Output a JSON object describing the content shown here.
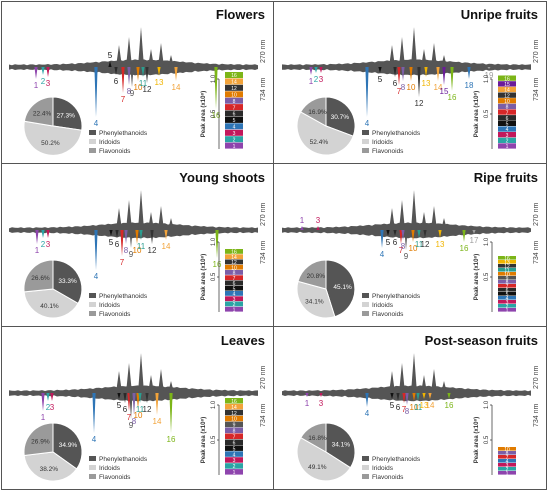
{
  "legend_labels": [
    "Phenylethanoids",
    "Iridoids",
    "Flavonoids"
  ],
  "wavelength_top": "270 nm",
  "wavelength_bottom": "734 nm",
  "bar_ylabel": "Peak area (x10⁸)",
  "bar_ticks": [
    "0.5",
    "1.0"
  ],
  "colors": {
    "chromatogram": "#555555",
    "phenylethanoids": "#555555",
    "iridoids": "#d3d3d3",
    "flavonoids": "#9a9a9a",
    "peaks": {
      "1": "#8e44ad",
      "2": "#2aa5a5",
      "3": "#c2185b",
      "4": "#2e75b6",
      "5": "#111111",
      "6": "#2a2a2a",
      "7": "#d62728",
      "8": "#7b5ea7",
      "9": "#555555",
      "10": "#e07b00",
      "11": "#2a9d8f",
      "12": "#333333",
      "13": "#f0b400",
      "14": "#f2a33a",
      "15": "#6a1b9a",
      "16": "#7cb518",
      "17": "#9e9e9e",
      "18": "#2e75b6",
      "19": "#9e9e9e"
    }
  },
  "chart_data": [
    {
      "panel": "Flowers",
      "type": "pie",
      "title": "Flowers",
      "pie": {
        "labels": [
          "Phenylethanoids",
          "Iridoids",
          "Flavonoids"
        ],
        "values": [
          27.3,
          50.2,
          22.4
        ],
        "value_labels": [
          "27.3%",
          "50.2%",
          "22.4%"
        ]
      },
      "bar": {
        "segments": [
          "1",
          "2",
          "3",
          "4",
          "5",
          "6",
          "7",
          "8",
          "10",
          "12",
          "14",
          "16"
        ],
        "total": 1.1
      },
      "peak_labels": [
        {
          "label": "1",
          "x": 35,
          "dir": "down",
          "h": 12
        },
        {
          "label": "2",
          "x": 42,
          "dir": "down",
          "h": 8
        },
        {
          "label": "3",
          "x": 47,
          "dir": "down",
          "h": 10
        },
        {
          "label": "4",
          "x": 95,
          "dir": "down",
          "h": 50
        },
        {
          "label": "5",
          "x": 109,
          "dir": "up",
          "h": 6
        },
        {
          "label": "6",
          "x": 115,
          "dir": "down",
          "h": 8
        },
        {
          "label": "7",
          "x": 122,
          "dir": "down",
          "h": 26
        },
        {
          "label": "8",
          "x": 128,
          "dir": "down",
          "h": 18
        },
        {
          "label": "9",
          "x": 131,
          "dir": "down",
          "h": 20
        },
        {
          "label": "10",
          "x": 137,
          "dir": "down",
          "h": 14
        },
        {
          "label": "11",
          "x": 142,
          "dir": "down",
          "h": 10
        },
        {
          "label": "12",
          "x": 146,
          "dir": "down",
          "h": 16
        },
        {
          "label": "13",
          "x": 158,
          "dir": "down",
          "h": 9
        },
        {
          "label": "14",
          "x": 175,
          "dir": "down",
          "h": 14
        },
        {
          "label": "16",
          "x": 215,
          "dir": "down",
          "h": 42
        }
      ]
    },
    {
      "panel": "Unripe fruits",
      "type": "pie",
      "title": "Unripe fruits",
      "pie": {
        "labels": [
          "Phenylethanoids",
          "Iridoids",
          "Flavonoids"
        ],
        "values": [
          30.7,
          52.4,
          16.9
        ],
        "value_labels": [
          "30.7%",
          "52.4%",
          "16.9%"
        ]
      },
      "bar": {
        "segments": [
          "1",
          "2",
          "3",
          "4",
          "5",
          "6",
          "7",
          "8",
          "10",
          "12",
          "14",
          "15",
          "16"
        ],
        "total": 1.05
      },
      "peak_labels": [
        {
          "label": "1",
          "x": 37,
          "dir": "down",
          "h": 8
        },
        {
          "label": "2",
          "x": 42,
          "dir": "down",
          "h": 6
        },
        {
          "label": "3",
          "x": 47,
          "dir": "down",
          "h": 6
        },
        {
          "label": "4",
          "x": 93,
          "dir": "down",
          "h": 50
        },
        {
          "label": "5",
          "x": 106,
          "dir": "down",
          "h": 6
        },
        {
          "label": "6",
          "x": 121,
          "dir": "down",
          "h": 10
        },
        {
          "label": "7",
          "x": 125,
          "dir": "down",
          "h": 18
        },
        {
          "label": "8",
          "x": 129,
          "dir": "down",
          "h": 14
        },
        {
          "label": "10",
          "x": 137,
          "dir": "down",
          "h": 14
        },
        {
          "label": "12",
          "x": 145,
          "dir": "down",
          "h": 30
        },
        {
          "label": "13",
          "x": 152,
          "dir": "down",
          "h": 10
        },
        {
          "label": "14",
          "x": 164,
          "dir": "down",
          "h": 14
        },
        {
          "label": "15",
          "x": 170,
          "dir": "down",
          "h": 18
        },
        {
          "label": "16",
          "x": 178,
          "dir": "down",
          "h": 24
        },
        {
          "label": "18",
          "x": 195,
          "dir": "down",
          "h": 12
        },
        {
          "label": "19",
          "x": 215,
          "dir": "down",
          "h": 2
        }
      ]
    },
    {
      "panel": "Young shoots",
      "type": "pie",
      "title": "Young shoots",
      "pie": {
        "labels": [
          "Phenylethanoids",
          "Iridoids",
          "Flavonoids"
        ],
        "values": [
          33.3,
          40.1,
          26.6
        ],
        "value_labels": [
          "33.3%",
          "40.1%",
          "26.6%"
        ]
      },
      "bar": {
        "segments": [
          "1",
          "2",
          "3",
          "4",
          "5",
          "6",
          "7",
          "8",
          "10",
          "12",
          "14",
          "16"
        ],
        "total": 0.9
      },
      "peak_labels": [
        {
          "label": "1",
          "x": 36,
          "dir": "down",
          "h": 14
        },
        {
          "label": "2",
          "x": 42,
          "dir": "down",
          "h": 8
        },
        {
          "label": "3",
          "x": 47,
          "dir": "down",
          "h": 8
        },
        {
          "label": "4",
          "x": 95,
          "dir": "down",
          "h": 40
        },
        {
          "label": "5",
          "x": 110,
          "dir": "down",
          "h": 6
        },
        {
          "label": "6",
          "x": 116,
          "dir": "down",
          "h": 8
        },
        {
          "label": "7",
          "x": 121,
          "dir": "down",
          "h": 26
        },
        {
          "label": "8",
          "x": 125,
          "dir": "down",
          "h": 14
        },
        {
          "label": "9",
          "x": 130,
          "dir": "down",
          "h": 18
        },
        {
          "label": "10",
          "x": 136,
          "dir": "down",
          "h": 14
        },
        {
          "label": "11",
          "x": 140,
          "dir": "down",
          "h": 10
        },
        {
          "label": "12",
          "x": 151,
          "dir": "down",
          "h": 14
        },
        {
          "label": "14",
          "x": 165,
          "dir": "down",
          "h": 10
        },
        {
          "label": "16",
          "x": 216,
          "dir": "down",
          "h": 28
        }
      ]
    },
    {
      "panel": "Ripe fruits",
      "type": "pie",
      "title": "Ripe fruits",
      "pie": {
        "labels": [
          "Phenylethanoids",
          "Iridoids",
          "Flavonoids"
        ],
        "values": [
          45.1,
          34.1,
          20.8
        ],
        "value_labels": [
          "45.1%",
          "34.1%",
          "20.8%"
        ]
      },
      "bar": {
        "segments": [
          "1",
          "2",
          "3",
          "4",
          "5",
          "6",
          "7",
          "8",
          "9",
          "10",
          "11",
          "12",
          "13",
          "16"
        ],
        "total": 0.8
      },
      "peak_labels": [
        {
          "label": "1",
          "x": 28,
          "dir": "up",
          "h": 4
        },
        {
          "label": "3",
          "x": 44,
          "dir": "up",
          "h": 4
        },
        {
          "label": "4",
          "x": 108,
          "dir": "down",
          "h": 18
        },
        {
          "label": "5",
          "x": 114,
          "dir": "down",
          "h": 6
        },
        {
          "label": "6",
          "x": 121,
          "dir": "down",
          "h": 6
        },
        {
          "label": "7",
          "x": 127,
          "dir": "down",
          "h": 14
        },
        {
          "label": "8",
          "x": 129,
          "dir": "down",
          "h": 10
        },
        {
          "label": "9",
          "x": 132,
          "dir": "down",
          "h": 20
        },
        {
          "label": "10",
          "x": 139,
          "dir": "down",
          "h": 12
        },
        {
          "label": "11",
          "x": 145,
          "dir": "down",
          "h": 8
        },
        {
          "label": "12",
          "x": 151,
          "dir": "down",
          "h": 8
        },
        {
          "label": "13",
          "x": 166,
          "dir": "down",
          "h": 8
        },
        {
          "label": "16",
          "x": 190,
          "dir": "down",
          "h": 12
        },
        {
          "label": "17",
          "x": 200,
          "dir": "down",
          "h": 4
        }
      ]
    },
    {
      "panel": "Leaves",
      "type": "pie",
      "title": "Leaves",
      "pie": {
        "labels": [
          "Phenylethanoids",
          "Iridoids",
          "Flavonoids"
        ],
        "values": [
          34.9,
          38.2,
          26.9
        ],
        "value_labels": [
          "34.9%",
          "38.2%",
          "26.9%"
        ]
      },
      "bar": {
        "segments": [
          "1",
          "2",
          "3",
          "4",
          "5",
          "6",
          "7",
          "8",
          "9",
          "10",
          "12",
          "14",
          "16"
        ],
        "total": 1.1
      },
      "peak_labels": [
        {
          "label": "1",
          "x": 42,
          "dir": "down",
          "h": 18
        },
        {
          "label": "2",
          "x": 47,
          "dir": "down",
          "h": 8
        },
        {
          "label": "3",
          "x": 51,
          "dir": "down",
          "h": 8
        },
        {
          "label": "4",
          "x": 93,
          "dir": "down",
          "h": 40
        },
        {
          "label": "5",
          "x": 118,
          "dir": "down",
          "h": 6
        },
        {
          "label": "6",
          "x": 124,
          "dir": "down",
          "h": 10
        },
        {
          "label": "7",
          "x": 128,
          "dir": "down",
          "h": 18
        },
        {
          "label": "8",
          "x": 133,
          "dir": "down",
          "h": 22
        },
        {
          "label": "9",
          "x": 130,
          "dir": "down",
          "h": 26
        },
        {
          "label": "10",
          "x": 137,
          "dir": "down",
          "h": 16
        },
        {
          "label": "11",
          "x": 139,
          "dir": "down",
          "h": 10
        },
        {
          "label": "12",
          "x": 146,
          "dir": "down",
          "h": 10
        },
        {
          "label": "14",
          "x": 156,
          "dir": "down",
          "h": 22
        },
        {
          "label": "16",
          "x": 170,
          "dir": "down",
          "h": 40
        }
      ]
    },
    {
      "panel": "Post-season fruits",
      "type": "pie",
      "title": "Post-season fruits",
      "pie": {
        "labels": [
          "Phenylethanoids",
          "Iridoids",
          "Flavonoids"
        ],
        "values": [
          34.1,
          49.1,
          16.8
        ],
        "value_labels": [
          "34.1%",
          "49.1%",
          "16.8%"
        ]
      },
      "bar": {
        "segments": [
          "1",
          "2",
          "3",
          "4",
          "7",
          "8",
          "10"
        ],
        "total": 0.4
      },
      "peak_labels": [
        {
          "label": "1",
          "x": 33,
          "dir": "down",
          "h": 4
        },
        {
          "label": "3",
          "x": 47,
          "dir": "down",
          "h": 4
        },
        {
          "label": "4",
          "x": 93,
          "dir": "down",
          "h": 14
        },
        {
          "label": "5",
          "x": 118,
          "dir": "down",
          "h": 6
        },
        {
          "label": "6",
          "x": 124,
          "dir": "down",
          "h": 8
        },
        {
          "label": "7",
          "x": 130,
          "dir": "down",
          "h": 10
        },
        {
          "label": "8",
          "x": 133,
          "dir": "down",
          "h": 12
        },
        {
          "label": "10",
          "x": 140,
          "dir": "down",
          "h": 8
        },
        {
          "label": "11",
          "x": 144,
          "dir": "down",
          "h": 8
        },
        {
          "label": "13",
          "x": 150,
          "dir": "down",
          "h": 6
        },
        {
          "label": "14",
          "x": 156,
          "dir": "down",
          "h": 6
        },
        {
          "label": "16",
          "x": 175,
          "dir": "down",
          "h": 6
        }
      ]
    }
  ]
}
